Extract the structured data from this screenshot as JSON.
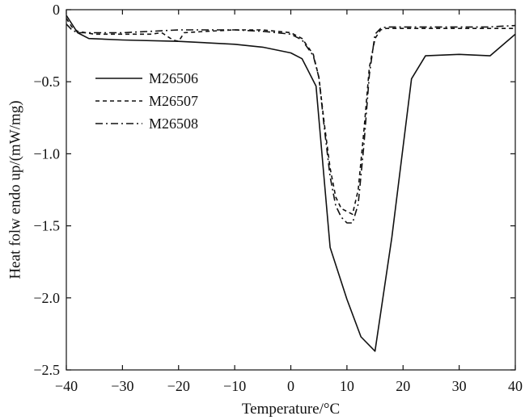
{
  "chart_data": {
    "type": "line",
    "xlabel": "Temperature/°C",
    "ylabel": "Heat folw endo up/(mW/mg)",
    "xlim": [
      -40,
      40
    ],
    "ylim": [
      -2.5,
      0
    ],
    "xticks": [
      -40,
      -30,
      -20,
      -10,
      0,
      10,
      20,
      30,
      40
    ],
    "xtick_labels": [
      "−40",
      "−30",
      "−20",
      "−10",
      "0",
      "10",
      "20",
      "30",
      "40"
    ],
    "yticks": [
      0,
      -0.5,
      -1.0,
      -1.5,
      -2.0,
      -2.5
    ],
    "ytick_labels": [
      "0",
      "−0.5",
      "−1.0",
      "−1.5",
      "−2.0",
      "−2.5"
    ],
    "grid": false,
    "legend_position": "upper-left",
    "series": [
      {
        "name": "M26506",
        "style": "solid",
        "x": [
          -40,
          -38,
          -36,
          -30,
          -20,
          -10,
          -5,
          0,
          2,
          4.5,
          7,
          10,
          12.5,
          15,
          18,
          21.5,
          24,
          30,
          35.5,
          40
        ],
        "y": [
          -0.04,
          -0.16,
          -0.2,
          -0.21,
          -0.22,
          -0.24,
          -0.26,
          -0.3,
          -0.34,
          -0.53,
          -1.65,
          -2.01,
          -2.27,
          -2.37,
          -1.58,
          -0.48,
          -0.32,
          -0.31,
          -0.32,
          -0.17
        ]
      },
      {
        "name": "M26507",
        "style": "dashed",
        "x": [
          -40,
          -39,
          -38,
          -35,
          -30,
          -25,
          -23,
          -21,
          -20,
          -19,
          -15,
          -10,
          -5,
          0,
          2,
          4,
          5,
          6,
          7,
          8,
          9,
          10,
          11,
          12,
          13,
          14,
          15,
          16,
          17,
          18,
          20,
          25,
          30,
          35,
          40
        ],
        "y": [
          -0.06,
          -0.12,
          -0.15,
          -0.17,
          -0.17,
          -0.17,
          -0.16,
          -0.21,
          -0.22,
          -0.16,
          -0.15,
          -0.14,
          -0.14,
          -0.16,
          -0.2,
          -0.31,
          -0.47,
          -0.8,
          -1.1,
          -1.3,
          -1.38,
          -1.4,
          -1.42,
          -1.25,
          -0.85,
          -0.4,
          -0.2,
          -0.14,
          -0.13,
          -0.13,
          -0.13,
          -0.13,
          -0.13,
          -0.13,
          -0.13
        ]
      },
      {
        "name": "M26508",
        "style": "dashdot",
        "x": [
          -40,
          -39,
          -38,
          -35,
          -30,
          -25,
          -20,
          -15,
          -10,
          -5,
          0,
          2,
          4,
          5,
          6,
          7,
          8,
          9,
          10,
          11,
          12,
          13,
          14,
          15,
          16,
          17,
          18,
          20,
          25,
          30,
          35,
          40
        ],
        "y": [
          -0.1,
          -0.14,
          -0.16,
          -0.16,
          -0.16,
          -0.15,
          -0.14,
          -0.14,
          -0.14,
          -0.15,
          -0.17,
          -0.21,
          -0.32,
          -0.47,
          -0.83,
          -1.16,
          -1.36,
          -1.44,
          -1.48,
          -1.48,
          -1.35,
          -0.95,
          -0.45,
          -0.17,
          -0.13,
          -0.12,
          -0.12,
          -0.12,
          -0.12,
          -0.12,
          -0.12,
          -0.11
        ]
      }
    ]
  }
}
